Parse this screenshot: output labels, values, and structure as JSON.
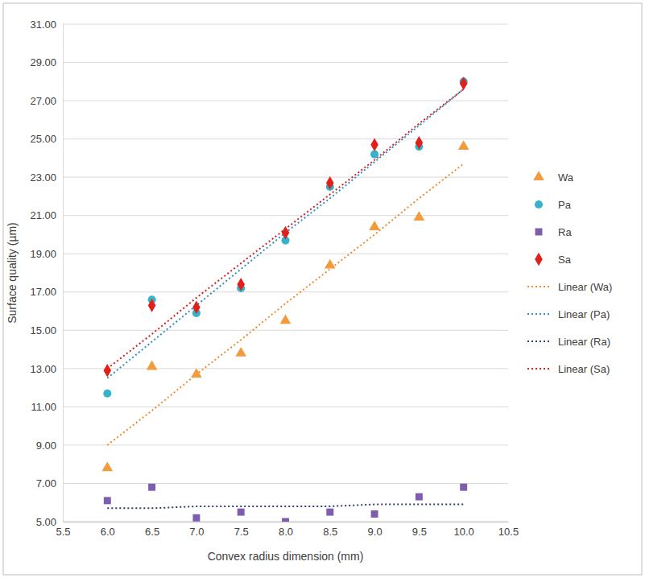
{
  "chart_data": {
    "type": "scatter",
    "x_label": "Convex radius dimension (mm)",
    "y_label": "Surface quality (µm)",
    "x": [
      6.0,
      6.5,
      7.0,
      7.5,
      8.0,
      8.5,
      9.0,
      9.5,
      10.0
    ],
    "xlim": [
      5.5,
      10.5
    ],
    "xticks": [
      {
        "value": 5.5,
        "label": "5.5"
      },
      {
        "value": 6,
        "label": "6.0"
      },
      {
        "value": 6.5,
        "label": "6.5"
      },
      {
        "value": 7,
        "label": "7.0"
      },
      {
        "value": 7.5,
        "label": "7.5"
      },
      {
        "value": 8,
        "label": "8.0"
      },
      {
        "value": 8.5,
        "label": "8.5"
      },
      {
        "value": 9,
        "label": "9.0"
      },
      {
        "value": 9.5,
        "label": "9.5"
      },
      {
        "value": 10,
        "label": "10.0"
      },
      {
        "value": 10.5,
        "label": "10.5"
      }
    ],
    "ylim": [
      5,
      31
    ],
    "yticks": [
      {
        "value": 5,
        "label": "5.00"
      },
      {
        "value": 7,
        "label": "7.00"
      },
      {
        "value": 9,
        "label": "9.00"
      },
      {
        "value": 11,
        "label": "11.00"
      },
      {
        "value": 13,
        "label": "13.00"
      },
      {
        "value": 15,
        "label": "15.00"
      },
      {
        "value": 17,
        "label": "17.00"
      },
      {
        "value": 19,
        "label": "19.00"
      },
      {
        "value": 21,
        "label": "21.00"
      },
      {
        "value": 23,
        "label": "23.00"
      },
      {
        "value": 25,
        "label": "25.00"
      },
      {
        "value": 27,
        "label": "27.00"
      },
      {
        "value": 29,
        "label": "29.00"
      },
      {
        "value": 31,
        "label": "31.00"
      }
    ],
    "grid": true,
    "legend": "right",
    "series": [
      {
        "name": "Wa",
        "type": "scatter",
        "marker": "triangle",
        "color": "#f39a3c",
        "values": [
          7.8,
          13.1,
          12.7,
          13.8,
          15.5,
          18.4,
          20.4,
          20.9,
          24.6
        ]
      },
      {
        "name": "Pa",
        "type": "scatter",
        "marker": "circle",
        "color": "#35b3cc",
        "values": [
          11.7,
          16.6,
          15.9,
          17.2,
          19.7,
          22.5,
          24.2,
          24.6,
          28.0
        ]
      },
      {
        "name": "Ra",
        "type": "scatter",
        "marker": "square",
        "color": "#7e5db0",
        "values": [
          6.1,
          6.8,
          5.2,
          5.5,
          5.0,
          5.5,
          5.4,
          6.3,
          6.8
        ]
      },
      {
        "name": "Sa",
        "type": "scatter",
        "marker": "diamond",
        "color": "#e0201b",
        "values": [
          12.9,
          16.3,
          16.2,
          17.4,
          20.1,
          22.7,
          24.7,
          24.8,
          27.9
        ]
      },
      {
        "name": "Linear (Wa)",
        "type": "line",
        "line_style": "dotted",
        "color": "#f08a2c",
        "values": [
          9.0,
          10.8,
          12.7,
          14.5,
          16.4,
          18.2,
          20.0,
          21.9,
          23.7
        ]
      },
      {
        "name": "Linear (Pa)",
        "type": "line",
        "line_style": "dotted",
        "color": "#2e8fc4",
        "values": [
          12.5,
          14.4,
          16.3,
          18.2,
          20.1,
          21.9,
          23.8,
          25.7,
          27.6
        ]
      },
      {
        "name": "Linear (Ra)",
        "type": "line",
        "line_style": "dotted",
        "color": "#2f3d6b",
        "values": [
          5.7,
          5.7,
          5.8,
          5.8,
          5.8,
          5.8,
          5.9,
          5.9,
          5.9
        ]
      },
      {
        "name": "Linear (Sa)",
        "type": "line",
        "line_style": "dotted",
        "color": "#d42020",
        "values": [
          13.0,
          14.8,
          16.7,
          18.5,
          20.3,
          22.1,
          23.9,
          25.8,
          27.6
        ]
      }
    ]
  }
}
